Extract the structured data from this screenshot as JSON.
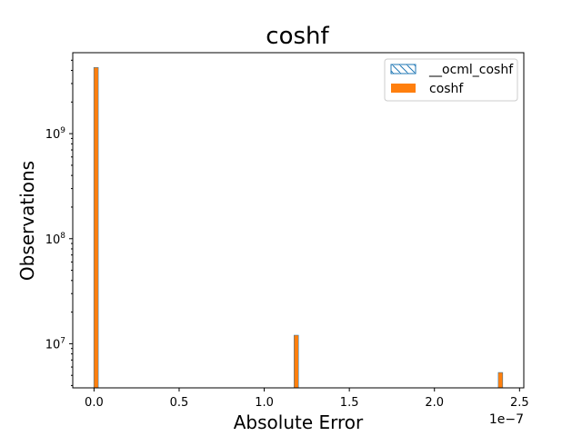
{
  "chart_data": {
    "type": "bar",
    "title": "coshf",
    "xlabel": "Absolute Error",
    "ylabel": "Observations",
    "x_offset_label": "1e−7",
    "xlim": [
      -0.125,
      2.525
    ],
    "ylim": [
      3800000,
      5900000000
    ],
    "yscale": "log",
    "x_ticks": [
      {
        "value": 0.0,
        "label": "0.0"
      },
      {
        "value": 0.5,
        "label": "0.5"
      },
      {
        "value": 1.0,
        "label": "1.0"
      },
      {
        "value": 1.5,
        "label": "1.5"
      },
      {
        "value": 2.0,
        "label": "2.0"
      },
      {
        "value": 2.5,
        "label": "2.5"
      }
    ],
    "y_ticks": [
      {
        "value": 10000000,
        "base": "10",
        "exp": "7"
      },
      {
        "value": 100000000,
        "base": "10",
        "exp": "8"
      },
      {
        "value": 1000000000,
        "base": "10",
        "exp": "9"
      }
    ],
    "legend_position": "top-right",
    "series": [
      {
        "name": "__ocml_coshf",
        "style": "hatched-outline",
        "color": "#1f77b4",
        "bars": [
          {
            "x0": 0.0,
            "x1": 0.024,
            "value": 4250000000
          },
          {
            "x0": 1.176,
            "x1": 1.2,
            "value": 12000000
          },
          {
            "x0": 2.376,
            "x1": 2.4,
            "value": 5300000
          }
        ]
      },
      {
        "name": "coshf",
        "style": "filled",
        "color": "#ff7f0e",
        "bars": [
          {
            "x0": 0.0,
            "x1": 0.024,
            "value": 4250000000
          },
          {
            "x0": 1.176,
            "x1": 1.2,
            "value": 12000000
          },
          {
            "x0": 2.376,
            "x1": 2.4,
            "value": 5300000
          }
        ]
      }
    ]
  }
}
